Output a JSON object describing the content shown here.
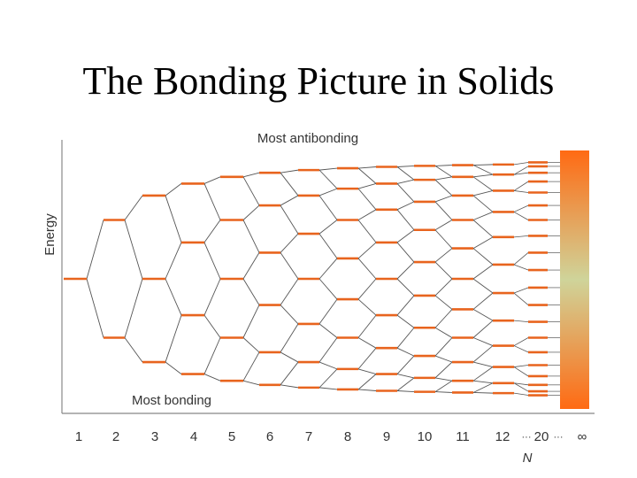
{
  "slide": {
    "title": "The Bonding Picture in Solids"
  },
  "diagram": {
    "top_label": "Most antibonding",
    "bottom_label": "Most bonding",
    "y_axis_label": "Energy",
    "x_axis_label": "N",
    "x_ticks": [
      "1",
      "2",
      "3",
      "4",
      "5",
      "6",
      "7",
      "8",
      "9",
      "10",
      "11",
      "12",
      "20",
      "∞"
    ],
    "ellipsis": "···",
    "colors": {
      "level": "#e8641e",
      "connector": "#555555",
      "axis": "#888888",
      "band_edge": "#ff6a13",
      "band_center": "#cfd49a"
    }
  }
}
